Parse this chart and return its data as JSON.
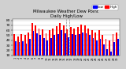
{
  "title": "Milwaukee Weather Dew Point",
  "subtitle": "Daily High/Low",
  "title_fontsize": 4.0,
  "background_color": "#d0d0d0",
  "plot_bg_color": "#ffffff",
  "bar_width": 0.42,
  "high_color": "#ff0000",
  "low_color": "#0000ff",
  "ylim_min": 10,
  "ylim_max": 82,
  "yticks": [
    10,
    20,
    30,
    40,
    50,
    60,
    70,
    80
  ],
  "ytick_fontsize": 3.2,
  "xtick_fontsize": 2.5,
  "grid_color": "#aaaaaa",
  "days": [
    "1",
    "2",
    "3",
    "4",
    "5",
    "6",
    "7",
    "8",
    "9",
    "10",
    "11",
    "12",
    "13",
    "14",
    "15",
    "16",
    "17",
    "18",
    "19",
    "20",
    "21",
    "22",
    "23",
    "24",
    "25",
    "26",
    "27",
    "28",
    "29",
    "30"
  ],
  "high_values": [
    52,
    48,
    52,
    50,
    56,
    75,
    70,
    64,
    62,
    54,
    60,
    64,
    68,
    75,
    70,
    62,
    66,
    64,
    66,
    72,
    70,
    64,
    60,
    56,
    60,
    50,
    42,
    40,
    52,
    56
  ],
  "low_values": [
    38,
    36,
    38,
    34,
    42,
    58,
    54,
    50,
    44,
    40,
    44,
    50,
    52,
    60,
    54,
    46,
    52,
    50,
    52,
    56,
    54,
    50,
    44,
    40,
    42,
    32,
    22,
    18,
    36,
    42
  ],
  "dashed_vlines": [
    14.5,
    15.5
  ],
  "legend_labels": [
    "Low",
    "High"
  ]
}
